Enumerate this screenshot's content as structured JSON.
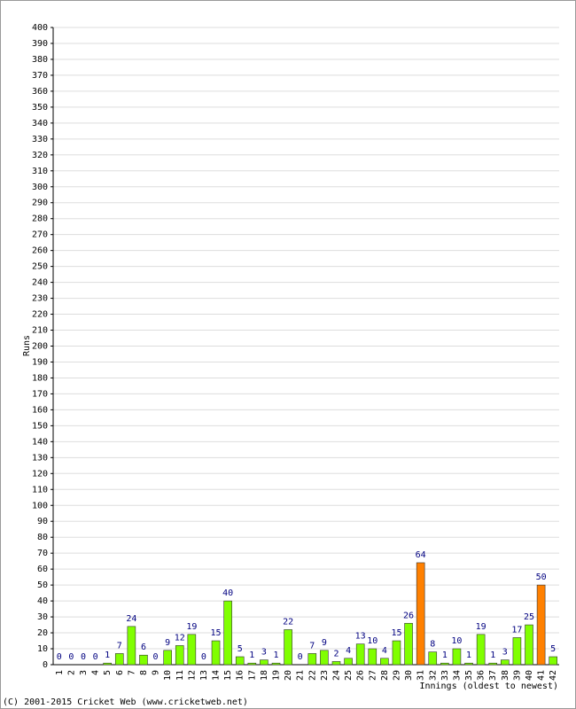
{
  "chart_data": {
    "type": "bar",
    "y_label": "Runs",
    "x_label": "Innings (oldest to newest)",
    "footer": "(C) 2001-2015 Cricket Web (www.cricketweb.net)",
    "categories": [
      "1",
      "2",
      "3",
      "4",
      "5",
      "6",
      "7",
      "8",
      "9",
      "10",
      "11",
      "12",
      "13",
      "14",
      "15",
      "16",
      "17",
      "18",
      "19",
      "20",
      "21",
      "22",
      "23",
      "24",
      "25",
      "26",
      "27",
      "28",
      "29",
      "30",
      "31",
      "32",
      "33",
      "34",
      "35",
      "36",
      "37",
      "38",
      "39",
      "40",
      "41",
      "42"
    ],
    "values": [
      0,
      0,
      0,
      0,
      1,
      7,
      24,
      6,
      0,
      9,
      12,
      19,
      0,
      15,
      40,
      5,
      1,
      3,
      1,
      22,
      0,
      7,
      9,
      2,
      4,
      13,
      10,
      4,
      15,
      26,
      64,
      8,
      1,
      10,
      1,
      19,
      1,
      3,
      17,
      25,
      50,
      5
    ],
    "colors": [
      "#80ff00",
      "#80ff00",
      "#80ff00",
      "#80ff00",
      "#80ff00",
      "#80ff00",
      "#80ff00",
      "#80ff00",
      "#80ff00",
      "#80ff00",
      "#80ff00",
      "#80ff00",
      "#80ff00",
      "#80ff00",
      "#80ff00",
      "#80ff00",
      "#80ff00",
      "#80ff00",
      "#80ff00",
      "#80ff00",
      "#80ff00",
      "#80ff00",
      "#80ff00",
      "#80ff00",
      "#80ff00",
      "#80ff00",
      "#80ff00",
      "#80ff00",
      "#80ff00",
      "#80ff00",
      "#ff8000",
      "#80ff00",
      "#80ff00",
      "#80ff00",
      "#80ff00",
      "#80ff00",
      "#80ff00",
      "#80ff00",
      "#80ff00",
      "#80ff00",
      "#ff8000",
      "#80ff00"
    ],
    "ylim": [
      0,
      400
    ],
    "yticks": [
      0,
      10,
      20,
      30,
      40,
      50,
      60,
      70,
      80,
      90,
      100,
      110,
      120,
      130,
      140,
      150,
      160,
      170,
      180,
      190,
      200,
      210,
      220,
      230,
      240,
      250,
      260,
      270,
      280,
      290,
      300,
      310,
      320,
      330,
      340,
      350,
      360,
      370,
      380,
      390,
      400
    ],
    "grid": true
  }
}
